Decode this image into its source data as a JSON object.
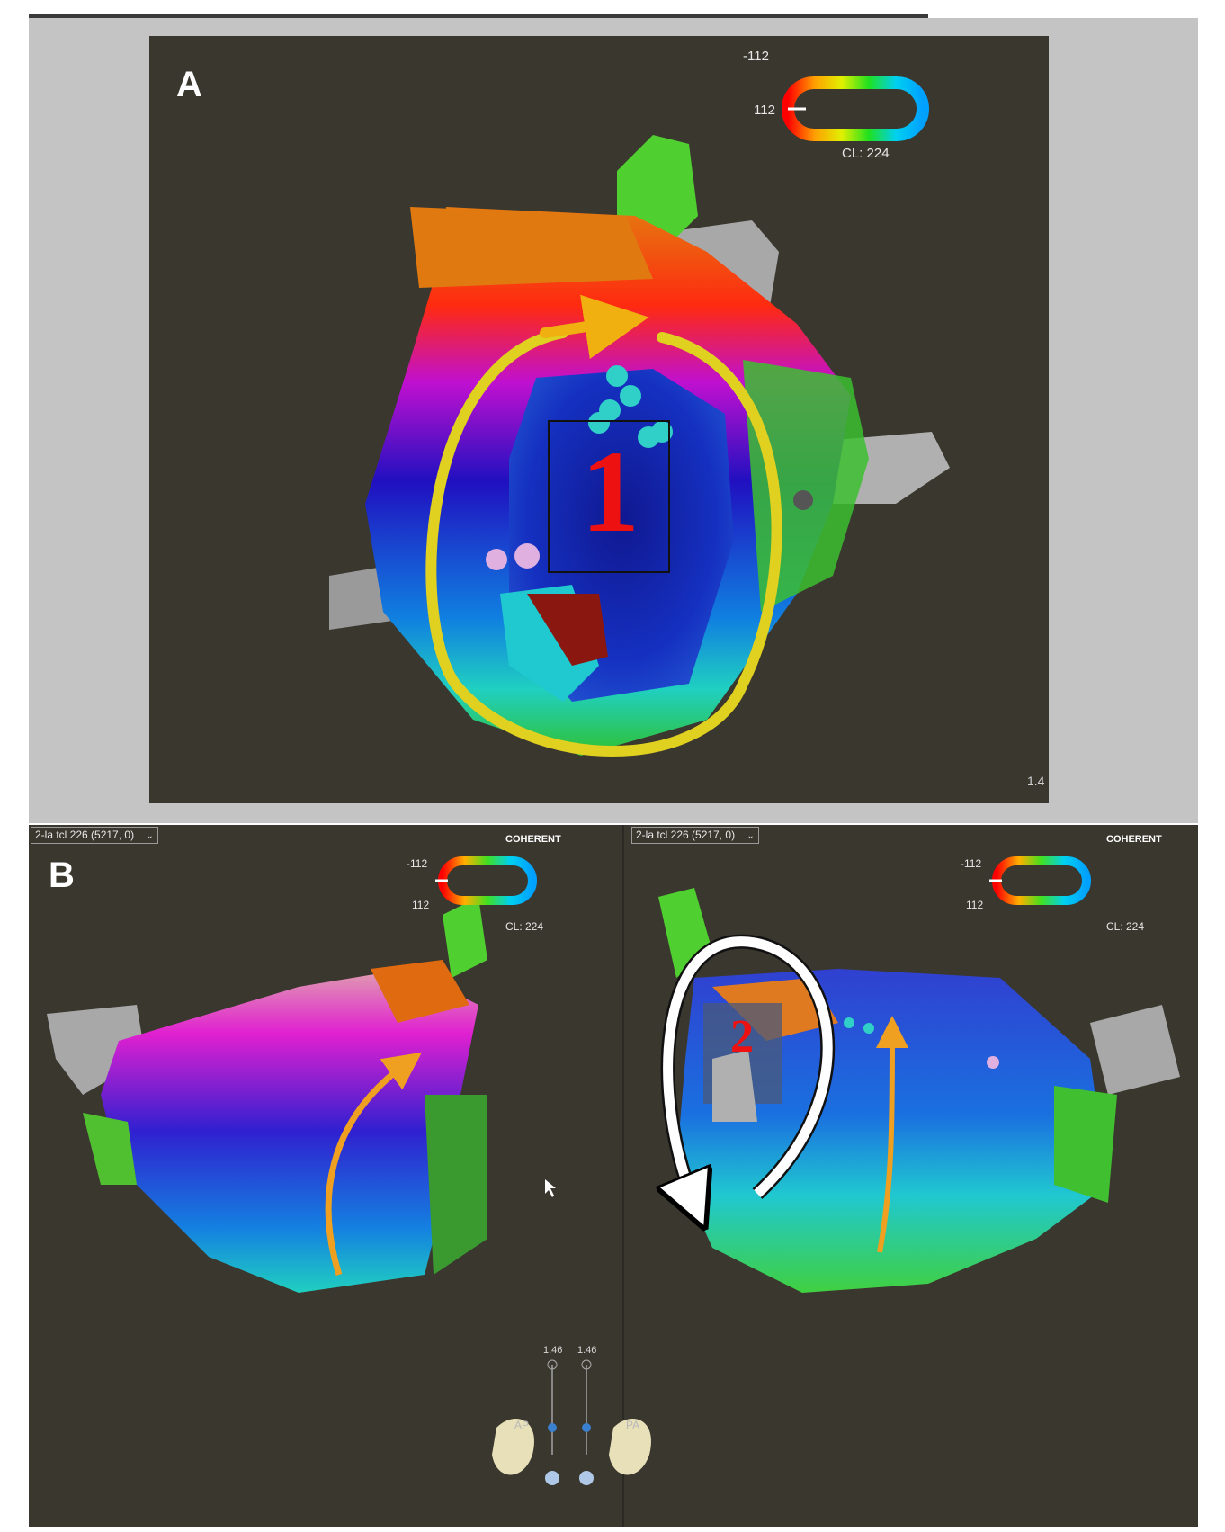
{
  "panel_a": {
    "label": "A",
    "color_scale": {
      "top": "-112",
      "bottom": "112",
      "cl": "CL:   224"
    },
    "region_label": "1",
    "corner_value": "1.4"
  },
  "panel_b": {
    "label": "B",
    "left": {
      "map_select": "2-la tcl 226 (5217, 0)",
      "coherent": "COHERENT",
      "color_scale": {
        "top": "-112",
        "bottom": "112",
        "cl": "CL:  224"
      },
      "zoom_value": "1.46",
      "view_name": "AP"
    },
    "right": {
      "map_select": "2-la tcl 226 (5217, 0)",
      "coherent": "COHERENT",
      "color_scale": {
        "top": "-112",
        "bottom": "112",
        "cl": "CL:  224"
      },
      "zoom_value": "1.46",
      "view_name": "PA",
      "region_label": "2"
    }
  },
  "colors": {
    "background": "#3a372f",
    "arrow_yellow": "#e0d01a",
    "arrow_orange": "#f0a020",
    "label_red": "#e01010"
  }
}
